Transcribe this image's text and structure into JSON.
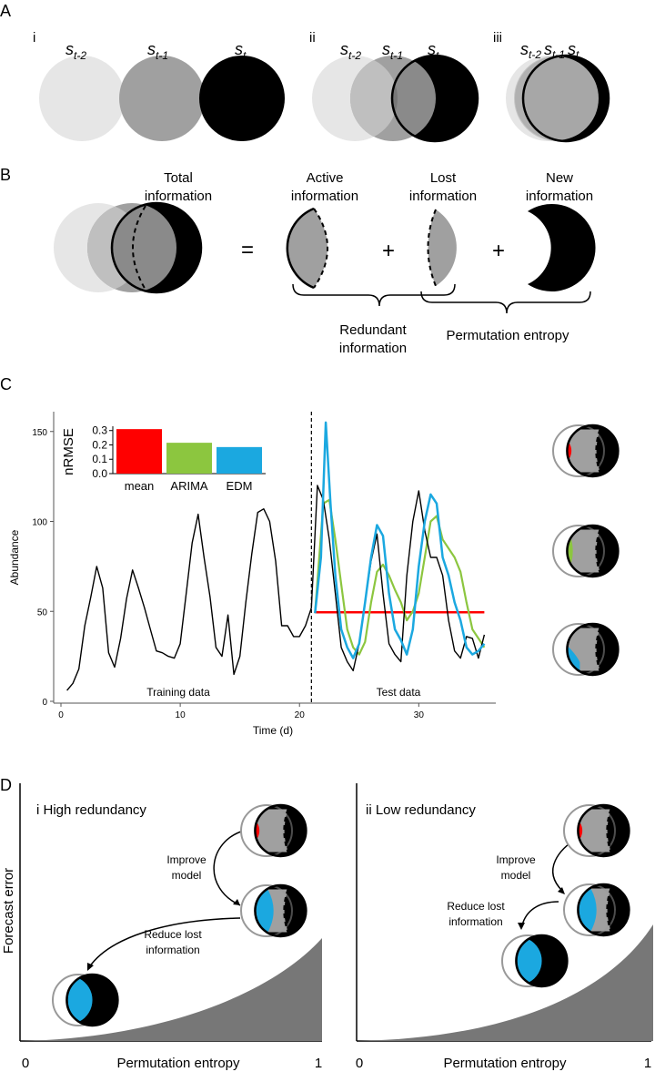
{
  "panelA": {
    "label": "A",
    "sub_labels": [
      "i",
      "ii",
      "iii"
    ],
    "state_base": "s",
    "state_subs": [
      "t-2",
      "t-1",
      "t"
    ]
  },
  "panelB": {
    "label": "B",
    "total_line1": "Total",
    "total_line2": "information",
    "active_line1": "Active",
    "active_line2": "information",
    "lost_line1": "Lost",
    "lost_line2": "information",
    "new_line1": "New",
    "new_line2": "information",
    "equals": "=",
    "plus": "+",
    "redundant_line1": "Redundant",
    "redundant_line2": "information",
    "permutation": "Permutation entropy"
  },
  "panelC": {
    "label": "C",
    "training_label": "Training data",
    "test_label": "Test data",
    "colors": {
      "mean": "#ff0000",
      "arima": "#8cc63f",
      "edm": "#1ba8e0",
      "observed": "#000000"
    }
  },
  "panelD": {
    "label": "D",
    "left_title": "i  High redundancy",
    "right_title": "ii  Low redundancy",
    "improve_line1": "Improve",
    "improve_line2": "model",
    "reduce_line1": "Reduce lost",
    "reduce_line2": "information",
    "y_label": "Forecast error",
    "x_label": "Permutation entropy",
    "x_min": "0",
    "x_max": "1"
  },
  "chart_data": [
    {
      "type": "line",
      "xlabel": "Time (d)",
      "ylabel": "Abundance",
      "xlim": [
        0,
        36
      ],
      "ylim": [
        0,
        160
      ],
      "x_ticks": [
        "0",
        "10",
        "20",
        "30"
      ],
      "y_ticks": [
        "0",
        "50",
        "100",
        "150"
      ],
      "split_at": 21,
      "series": [
        {
          "x": [
            0.5,
            1,
            1.5,
            2,
            2.5,
            3,
            3.5,
            4,
            4.5,
            5,
            5.5,
            6,
            6.5,
            7,
            7.5,
            8,
            8.5,
            9,
            9.5,
            10,
            10.5,
            11,
            11.5,
            12,
            12.5,
            13,
            13.5,
            14,
            14.5,
            15,
            15.5,
            16,
            16.5,
            17,
            17.5,
            18,
            18.5,
            19,
            19.5,
            20,
            20.5,
            21,
            21.5,
            22,
            22.5,
            23,
            23.5,
            24,
            24.5,
            25,
            25.5,
            26,
            26.5,
            27,
            27.5,
            28,
            28.5,
            29,
            29.5,
            30,
            30.5,
            31,
            31.5,
            32,
            32.5,
            33,
            33.5,
            34,
            34.5,
            35,
            35.5
          ],
          "y": [
            6,
            10,
            18,
            42,
            58,
            75,
            63,
            27,
            19,
            35,
            57,
            73,
            63,
            52,
            40,
            28,
            27,
            25,
            24,
            32,
            60,
            88,
            104,
            80,
            58,
            30,
            25,
            48,
            15,
            25,
            55,
            82,
            105,
            107,
            100,
            78,
            42,
            42,
            36,
            36,
            42,
            52,
            120,
            112,
            90,
            60,
            30,
            22,
            17,
            32,
            55,
            78,
            93,
            60,
            32,
            26,
            22,
            70,
            100,
            117,
            95,
            80,
            80,
            70,
            45,
            28,
            24,
            36,
            35,
            24,
            37
          ]
        },
        {
          "name": "mean",
          "x": [
            21.3,
            35.5
          ],
          "y": [
            49.5,
            49.5
          ]
        },
        {
          "name": "ARIMA",
          "x": [
            21.3,
            22,
            22.5,
            23,
            23.5,
            24,
            24.5,
            25,
            25.5,
            26,
            26.5,
            27,
            27.5,
            28,
            28.5,
            29,
            29.5,
            30,
            30.5,
            31,
            31.5,
            32,
            32.5,
            33,
            33.5,
            34,
            34.5,
            35,
            35.5
          ],
          "y": [
            49,
            110,
            112,
            90,
            65,
            40,
            30,
            26,
            33,
            55,
            72,
            76,
            70,
            62,
            55,
            45,
            50,
            60,
            80,
            100,
            103,
            90,
            85,
            80,
            72,
            55,
            40,
            35,
            30
          ]
        },
        {
          "name": "EDM",
          "x": [
            21.3,
            21.8,
            22.2,
            22.6,
            23,
            23.5,
            24,
            24.5,
            25,
            25.5,
            26,
            26.5,
            27,
            27.5,
            28,
            28.5,
            29,
            29.5,
            30,
            30.5,
            31,
            31.5,
            32,
            32.5,
            33,
            33.5,
            34,
            34.5,
            35,
            35.5
          ],
          "y": [
            49,
            80,
            155,
            110,
            70,
            40,
            30,
            24,
            32,
            55,
            80,
            98,
            92,
            60,
            40,
            34,
            26,
            40,
            75,
            100,
            115,
            110,
            80,
            70,
            55,
            45,
            30,
            26,
            28,
            32
          ]
        }
      ]
    },
    {
      "type": "bar",
      "ylabel": "nRMSE",
      "categories": [
        "mean",
        "ARIMA",
        "EDM"
      ],
      "values": [
        0.31,
        0.215,
        0.185
      ],
      "ylim": [
        0,
        0.3
      ],
      "y_ticks": [
        "0.0",
        "0.1",
        "0.2",
        "0.3"
      ]
    }
  ]
}
